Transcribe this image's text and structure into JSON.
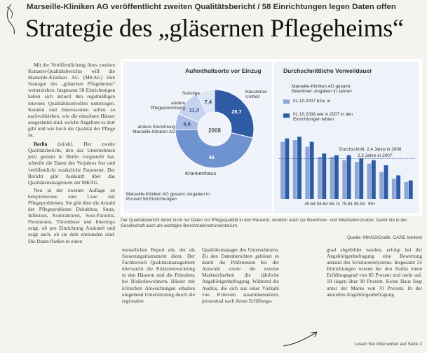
{
  "article": {
    "kicker": "Marseille-Kliniken AG veröffentlicht zweiten Qualitätsbericht / 58 Einrichtungen legen Daten offen",
    "headline": "Strategie des „gläsernen Pflegeheims“",
    "lead": "Mit der Veröffentlichung ihres zweiten Konzern-Qualitätsberichts will die Marseille-Kliniken AG (MKAG) ihre Strategie des „gläsernen Pflegeheims“ weiterziehen. Insgesamt 58 Einrichtungen haben sich aktuell den regelmäßigen internen Qualitätskontrollen unterzogen. Kunden und Interessenten sollen so nachvollziehen, wie die einzelnen Häuser ausgestattet sind, welche Angebote es dort gibt und wie hoch die Qualität der Pflege ist.",
    "para1_dateline": "Berlin",
    "para1_source": "(sti/ab).",
    "para1": "Der zweite Qualitätsbericht, den das Unternehmen jetzt gestern in Berlin vorgestellt hat, schreibt die Daten des Vorjahres fort und veröffentlicht zusätzliche Parameter. Der Bericht gibt Auskunft über das Qualitätsmanagement der MKAG.",
    "para2": "Neu in der zweiten Auflage ist beispielsweise eine Liste mit Pflegeproblemen. Sie gibt über die Anzahl der Pflegeprobleme Dekubitus, Sturz, Infektion, Kontrakturen, Soor-Parotitis, Pneumonie, Thrombose und Intertrigo zeigt, ob pro Einrichtung Auskunft und zeigt auch, ob sie dem entstanden sind. Die Daten fließen in einen",
    "col2": "monatlichen Report ein, der als Steuerungsinstrument dient. Der Fachbereich Qualitätsmanagement überwacht die Risikoentwicklung in den Häusern und die Prävalenz bei Risikobewohnern. Häuser mit kritischen Abweichungen erhalten umgehend Unterstützung durch die regionalen",
    "col3": "Qualitätsmanager des Unternehmens. Zu den Datenberichten gehören es damit die Präferenzen bei der Auswahl sowie die externe Marktsicherheit die jährliche Angehörigenbefragung. Während die Auditis, die sich aus einer Vielzahl von Kriterien zusammensetzen, prozentual nach ihrem Erfüllungs-",
    "col4": "grad abgebildet werden, erfolgt bei der Angehörigenbefragung eine Bewertung anhand des Schulnotensystems. Insgesamt 35 Einrichtungen wiesen bei den Audits einen Erfüllungsgrad von 85 Prozent und mehr auf, 18 liegen über 90 Prozent. Keine Haus liegt unter der Marke von 70 Prozent. In der aktuellen Angehörigenbefragung",
    "footer": "Lesen Sie bitte weiter auf Seite 2"
  },
  "graphic": {
    "left_title": "Aufenthaltsorte vor Einzug",
    "right_title": "Durchschnittliche Verweildauer",
    "center_label": "2008",
    "labels": {
      "sonstige": "Sonstige",
      "andere_pflege": "andere Pflegeeinrichtung",
      "haeusliches": "Häusliches Umfeld",
      "andere_mkag": "andere Einrichtung Marseille-Kliniken AG",
      "krankenhaus": "Krankenhaus"
    },
    "mkag_note": "Marseille-Kliniken AG gesamt: Angaben in Prozent 58 Einrichtungen",
    "legend_head": "Marseille-Kliniken AG gesamt Bewohner: Angaben in Jahren",
    "legend_2007": "01.10.2007 bzw. in",
    "legend_2008": "01.10.2008 wie in 2007 in den Einrichtungen lebten",
    "avg_line_1": "Durchschnitt: 2,4 Jahre in 2008",
    "avg_line_2": "2,2 Jahre in 2007",
    "caption": "Der Qualitätsbericht liefert nicht nur Daten zur Pflegequalität in den Häusern, sondern auch zur Bewohner- und Mitarbeiterstruktur. Damit die in der Gesellschaft auch als wichtiges Benchmarkinstrumentarium.",
    "source": "Quelle: MKAG/Grafik: CARE konkret"
  },
  "chart_data": [
    {
      "type": "pie",
      "title": "Aufenthaltsorte vor Einzug",
      "center_label": "2008",
      "categories": [
        "Häusliches Umfeld",
        "Krankenhaus",
        "andere Einrichtung Marseille-Kliniken AG",
        "andere Pflegeeinrichtung",
        "Sonstige"
      ],
      "values": [
        28.7,
        46.0,
        6.6,
        11.3,
        7.4
      ],
      "colors": [
        "#2f5aa4",
        "#6f93cf",
        "#a9bde4",
        "#c5d3ee",
        "#dde6f5"
      ]
    },
    {
      "type": "bar",
      "title": "Durchschnittliche Verweildauer",
      "series": [
        {
          "name": "01.10.2007",
          "values": [
            3.4,
            3.5,
            3.1,
            2.5,
            2.5,
            2.3,
            2.2,
            2.1,
            1.6,
            1.2,
            1.0
          ]
        },
        {
          "name": "01.10.2008",
          "values": [
            3.6,
            3.7,
            3.4,
            2.7,
            2.6,
            2.6,
            2.4,
            2.3,
            2.0,
            1.4,
            1.1
          ]
        }
      ],
      "series_colors": [
        "#8da6d8",
        "#2f5aa4"
      ],
      "categories": [
        "",
        "",
        "45-54",
        "55-64",
        "65-74",
        "75-84",
        "85-94",
        "95+",
        "",
        "",
        ""
      ],
      "average_2008": 2.4,
      "average_2007": 2.2,
      "ylim": [
        0,
        4
      ]
    }
  ]
}
